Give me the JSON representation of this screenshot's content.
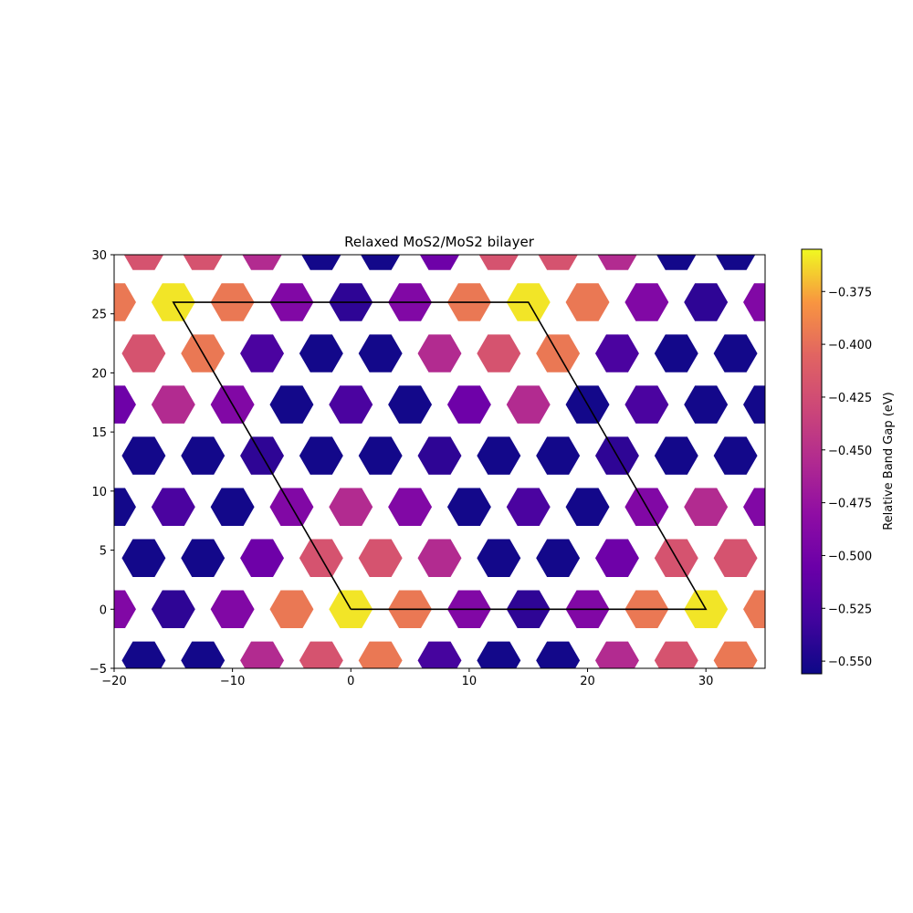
{
  "chart_data": {
    "type": "heatmap",
    "title": "Relaxed MoS2/MoS2 bilayer",
    "xlabel": "",
    "ylabel": "",
    "xlim": [
      -20,
      35
    ],
    "ylim": [
      -5,
      30
    ],
    "x_ticks": [
      -20,
      -10,
      0,
      10,
      20,
      30
    ],
    "x_tick_labels": [
      "−20",
      "−10",
      "0",
      "10",
      "20",
      "30"
    ],
    "y_ticks": [
      -5,
      0,
      5,
      10,
      15,
      20,
      25,
      30
    ],
    "y_tick_labels": [
      "−5",
      "0",
      "5",
      "10",
      "15",
      "20",
      "25",
      "30"
    ],
    "colormap": "plasma",
    "colorbar": {
      "label": "Relative Band Gap (eV)",
      "range": [
        -0.556,
        -0.355
      ],
      "ticks": [
        -0.55,
        -0.525,
        -0.5,
        -0.475,
        -0.45,
        -0.425,
        -0.4,
        -0.375
      ],
      "tick_labels": [
        "−0.550",
        "−0.525",
        "−0.500",
        "−0.475",
        "−0.450",
        "−0.425",
        "−0.400",
        "−0.375"
      ]
    },
    "cell_shape": "hexagon",
    "cell_radius": 1.85,
    "cells": [
      {
        "x": -17.5,
        "y": -4.33,
        "value": -0.553
      },
      {
        "x": -12.5,
        "y": -4.33,
        "value": -0.553
      },
      {
        "x": -7.5,
        "y": -4.33,
        "value": -0.455
      },
      {
        "x": -2.5,
        "y": -4.33,
        "value": -0.42
      },
      {
        "x": 2.5,
        "y": -4.33,
        "value": -0.395
      },
      {
        "x": 7.5,
        "y": -4.33,
        "value": -0.528
      },
      {
        "x": 12.5,
        "y": -4.33,
        "value": -0.553
      },
      {
        "x": 17.5,
        "y": -4.33,
        "value": -0.553
      },
      {
        "x": 22.5,
        "y": -4.33,
        "value": -0.455
      },
      {
        "x": 27.5,
        "y": -4.33,
        "value": -0.42
      },
      {
        "x": 32.5,
        "y": -4.33,
        "value": -0.395
      },
      {
        "x": -20,
        "y": 0,
        "value": -0.49
      },
      {
        "x": -15,
        "y": 0,
        "value": -0.54
      },
      {
        "x": -10,
        "y": 0,
        "value": -0.49
      },
      {
        "x": -5,
        "y": 0,
        "value": -0.395
      },
      {
        "x": 0,
        "y": 0,
        "value": -0.36
      },
      {
        "x": 5,
        "y": 0,
        "value": -0.395
      },
      {
        "x": 10,
        "y": 0,
        "value": -0.49
      },
      {
        "x": 15,
        "y": 0,
        "value": -0.54
      },
      {
        "x": 20,
        "y": 0,
        "value": -0.49
      },
      {
        "x": 25,
        "y": 0,
        "value": -0.395
      },
      {
        "x": 30,
        "y": 0,
        "value": -0.36
      },
      {
        "x": 35,
        "y": 0,
        "value": -0.395
      },
      {
        "x": -17.5,
        "y": 4.33,
        "value": -0.553
      },
      {
        "x": -12.5,
        "y": 4.33,
        "value": -0.553
      },
      {
        "x": -7.5,
        "y": 4.33,
        "value": -0.503
      },
      {
        "x": -2.5,
        "y": 4.33,
        "value": -0.42
      },
      {
        "x": 2.5,
        "y": 4.33,
        "value": -0.42
      },
      {
        "x": 7.5,
        "y": 4.33,
        "value": -0.455
      },
      {
        "x": 12.5,
        "y": 4.33,
        "value": -0.553
      },
      {
        "x": 17.5,
        "y": 4.33,
        "value": -0.553
      },
      {
        "x": 22.5,
        "y": 4.33,
        "value": -0.503
      },
      {
        "x": 27.5,
        "y": 4.33,
        "value": -0.42
      },
      {
        "x": 32.5,
        "y": 4.33,
        "value": -0.42
      },
      {
        "x": -20,
        "y": 8.66,
        "value": -0.553
      },
      {
        "x": -15,
        "y": 8.66,
        "value": -0.525
      },
      {
        "x": -10,
        "y": 8.66,
        "value": -0.553
      },
      {
        "x": -5,
        "y": 8.66,
        "value": -0.49
      },
      {
        "x": 0,
        "y": 8.66,
        "value": -0.455
      },
      {
        "x": 5,
        "y": 8.66,
        "value": -0.49
      },
      {
        "x": 10,
        "y": 8.66,
        "value": -0.553
      },
      {
        "x": 15,
        "y": 8.66,
        "value": -0.525
      },
      {
        "x": 20,
        "y": 8.66,
        "value": -0.553
      },
      {
        "x": 25,
        "y": 8.66,
        "value": -0.49
      },
      {
        "x": 30,
        "y": 8.66,
        "value": -0.455
      },
      {
        "x": 35,
        "y": 8.66,
        "value": -0.49
      },
      {
        "x": -17.5,
        "y": 12.99,
        "value": -0.553
      },
      {
        "x": -12.5,
        "y": 12.99,
        "value": -0.553
      },
      {
        "x": -7.5,
        "y": 12.99,
        "value": -0.54
      },
      {
        "x": -2.5,
        "y": 12.99,
        "value": -0.553
      },
      {
        "x": 2.5,
        "y": 12.99,
        "value": -0.553
      },
      {
        "x": 7.5,
        "y": 12.99,
        "value": -0.54
      },
      {
        "x": 12.5,
        "y": 12.99,
        "value": -0.553
      },
      {
        "x": 17.5,
        "y": 12.99,
        "value": -0.553
      },
      {
        "x": 22.5,
        "y": 12.99,
        "value": -0.54
      },
      {
        "x": 27.5,
        "y": 12.99,
        "value": -0.553
      },
      {
        "x": 32.5,
        "y": 12.99,
        "value": -0.553
      },
      {
        "x": -20,
        "y": 17.32,
        "value": -0.503
      },
      {
        "x": -15,
        "y": 17.32,
        "value": -0.455
      },
      {
        "x": -10,
        "y": 17.32,
        "value": -0.49
      },
      {
        "x": -5,
        "y": 17.32,
        "value": -0.553
      },
      {
        "x": 0,
        "y": 17.32,
        "value": -0.525
      },
      {
        "x": 5,
        "y": 17.32,
        "value": -0.553
      },
      {
        "x": 10,
        "y": 17.32,
        "value": -0.503
      },
      {
        "x": 15,
        "y": 17.32,
        "value": -0.455
      },
      {
        "x": 20,
        "y": 17.32,
        "value": -0.553
      },
      {
        "x": 25,
        "y": 17.32,
        "value": -0.525
      },
      {
        "x": 30,
        "y": 17.32,
        "value": -0.553
      },
      {
        "x": 35,
        "y": 17.32,
        "value": -0.553
      },
      {
        "x": -17.5,
        "y": 21.65,
        "value": -0.42
      },
      {
        "x": -12.5,
        "y": 21.65,
        "value": -0.395
      },
      {
        "x": -7.5,
        "y": 21.65,
        "value": -0.525
      },
      {
        "x": -2.5,
        "y": 21.65,
        "value": -0.553
      },
      {
        "x": 2.5,
        "y": 21.65,
        "value": -0.553
      },
      {
        "x": 7.5,
        "y": 21.65,
        "value": -0.455
      },
      {
        "x": 12.5,
        "y": 21.65,
        "value": -0.42
      },
      {
        "x": 17.5,
        "y": 21.65,
        "value": -0.395
      },
      {
        "x": 22.5,
        "y": 21.65,
        "value": -0.525
      },
      {
        "x": 27.5,
        "y": 21.65,
        "value": -0.553
      },
      {
        "x": 32.5,
        "y": 21.65,
        "value": -0.553
      },
      {
        "x": -20,
        "y": 25.98,
        "value": -0.395
      },
      {
        "x": -15,
        "y": 25.98,
        "value": -0.36
      },
      {
        "x": -10,
        "y": 25.98,
        "value": -0.395
      },
      {
        "x": -5,
        "y": 25.98,
        "value": -0.49
      },
      {
        "x": 0,
        "y": 25.98,
        "value": -0.54
      },
      {
        "x": 5,
        "y": 25.98,
        "value": -0.49
      },
      {
        "x": 10,
        "y": 25.98,
        "value": -0.395
      },
      {
        "x": 15,
        "y": 25.98,
        "value": -0.36
      },
      {
        "x": 20,
        "y": 25.98,
        "value": -0.395
      },
      {
        "x": 25,
        "y": 25.98,
        "value": -0.49
      },
      {
        "x": 30,
        "y": 25.98,
        "value": -0.54
      },
      {
        "x": 35,
        "y": 25.98,
        "value": -0.49
      },
      {
        "x": -17.5,
        "y": 30.31,
        "value": -0.42
      },
      {
        "x": -12.5,
        "y": 30.31,
        "value": -0.42
      },
      {
        "x": -7.5,
        "y": 30.31,
        "value": -0.455
      },
      {
        "x": -2.5,
        "y": 30.31,
        "value": -0.553
      },
      {
        "x": 2.5,
        "y": 30.31,
        "value": -0.553
      },
      {
        "x": 7.5,
        "y": 30.31,
        "value": -0.503
      },
      {
        "x": 12.5,
        "y": 30.31,
        "value": -0.42
      },
      {
        "x": 17.5,
        "y": 30.31,
        "value": -0.42
      },
      {
        "x": 22.5,
        "y": 30.31,
        "value": -0.455
      },
      {
        "x": 27.5,
        "y": 30.31,
        "value": -0.553
      },
      {
        "x": 32.5,
        "y": 30.31,
        "value": -0.553
      }
    ],
    "unit_cell_outline": [
      [
        0,
        0
      ],
      [
        30,
        0
      ],
      [
        15,
        25.98
      ],
      [
        -15,
        25.98
      ],
      [
        0,
        0
      ]
    ],
    "outline_color": "#000000"
  }
}
